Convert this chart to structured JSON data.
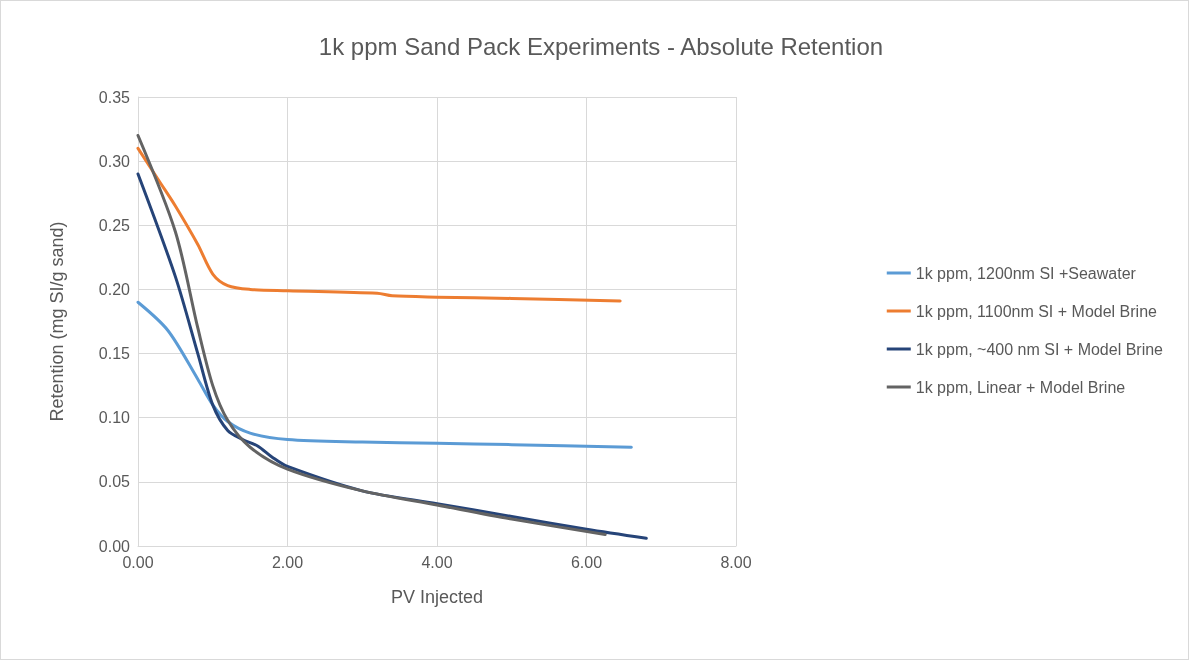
{
  "chart_data": {
    "type": "line",
    "title": "1k ppm Sand Pack Experiments - Absolute Retention",
    "xlabel": "PV Injected",
    "ylabel": "Retention (mg SI/g sand)",
    "xlim": [
      0,
      8
    ],
    "xticks": [
      {
        "value": 0,
        "label": "0.00"
      },
      {
        "value": 2,
        "label": "2.00"
      },
      {
        "value": 4,
        "label": "4.00"
      },
      {
        "value": 6,
        "label": "6.00"
      },
      {
        "value": 8,
        "label": "8.00"
      }
    ],
    "ylim": [
      0,
      0.35
    ],
    "yticks": [
      {
        "value": 0,
        "label": "0.00"
      },
      {
        "value": 0.05,
        "label": "0.05"
      },
      {
        "value": 0.1,
        "label": "0.10"
      },
      {
        "value": 0.15,
        "label": "0.15"
      },
      {
        "value": 0.2,
        "label": "0.20"
      },
      {
        "value": 0.25,
        "label": "0.25"
      },
      {
        "value": 0.3,
        "label": "0.30"
      },
      {
        "value": 0.35,
        "label": "0.35"
      }
    ],
    "grid": true,
    "legend": "right",
    "marker": "none",
    "line_style": "solid",
    "series": [
      {
        "name": "1k ppm, 1200nm SI +Seawater",
        "color": "#5b9bd5",
        "x": [
          0,
          0.4,
          0.8,
          1.0,
          1.2,
          1.5,
          2,
          3,
          4,
          5,
          6.6
        ],
        "values": [
          0.19,
          0.168,
          0.13,
          0.11,
          0.097,
          0.088,
          0.083,
          0.081,
          0.08,
          0.079,
          0.077
        ]
      },
      {
        "name": "1k ppm, 1100nm SI + Model Brine",
        "color": "#ed7d31",
        "x": [
          0,
          0.3,
          0.5,
          0.8,
          1.0,
          1.2,
          1.5,
          2,
          3.2,
          3.4,
          4,
          5,
          6.45
        ],
        "values": [
          0.31,
          0.283,
          0.265,
          0.235,
          0.212,
          0.203,
          0.2,
          0.199,
          0.197,
          0.195,
          0.194,
          0.193,
          0.191
        ]
      },
      {
        "name": "1k ppm, ~400 nm SI + Model Brine",
        "color": "#264478",
        "x": [
          0,
          0.5,
          0.8,
          1.0,
          1.2,
          1.4,
          1.6,
          1.8,
          2,
          3,
          4,
          5,
          6,
          6.8
        ],
        "values": [
          0.29,
          0.21,
          0.15,
          0.11,
          0.09,
          0.083,
          0.078,
          0.069,
          0.062,
          0.043,
          0.033,
          0.023,
          0.013,
          0.006
        ]
      },
      {
        "name": "1k ppm, Linear + Model Brine",
        "color": "#636363",
        "x": [
          0,
          0.5,
          0.8,
          1.0,
          1.2,
          1.5,
          2,
          3,
          4,
          5,
          6.25
        ],
        "values": [
          0.32,
          0.245,
          0.17,
          0.125,
          0.098,
          0.077,
          0.06,
          0.043,
          0.032,
          0.021,
          0.009
        ]
      }
    ]
  }
}
